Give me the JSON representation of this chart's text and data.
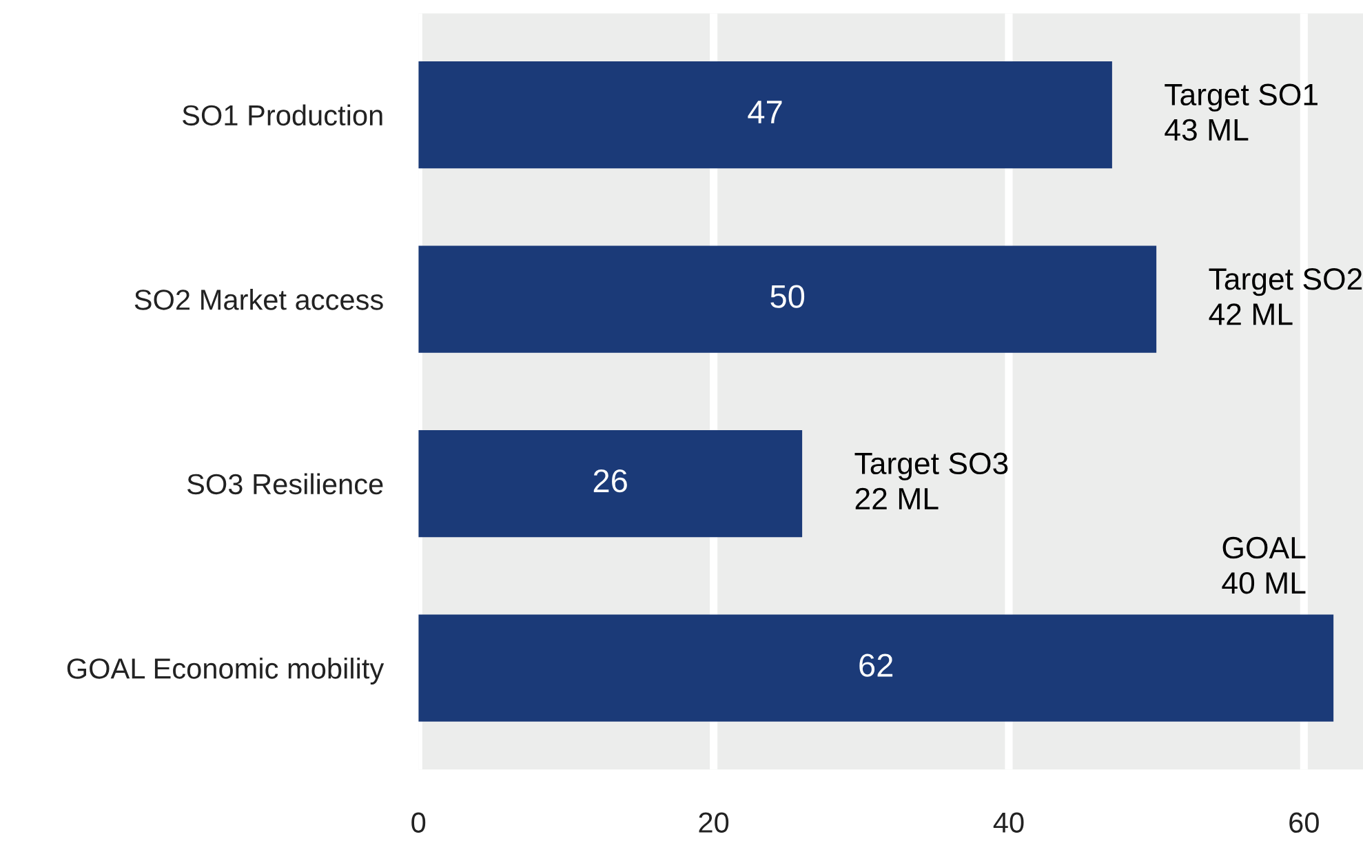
{
  "chart_data": {
    "type": "bar",
    "orientation": "horizontal",
    "categories": [
      "SO1 Production",
      "SO2 Market access",
      "SO3 Resilience",
      "GOAL Economic mobility"
    ],
    "values": [
      47,
      50,
      26,
      62
    ],
    "color": "#1b3a78",
    "data_labels": true,
    "xlim": [
      0,
      64
    ],
    "xticks": [
      0,
      20,
      40,
      60
    ],
    "grid": "x",
    "legend": false,
    "annotations": [
      "Target SO1\n43 ML",
      "Target SO2\n42 ML",
      "Target SO3\n22 ML",
      "GOAL\n40 ML"
    ]
  }
}
